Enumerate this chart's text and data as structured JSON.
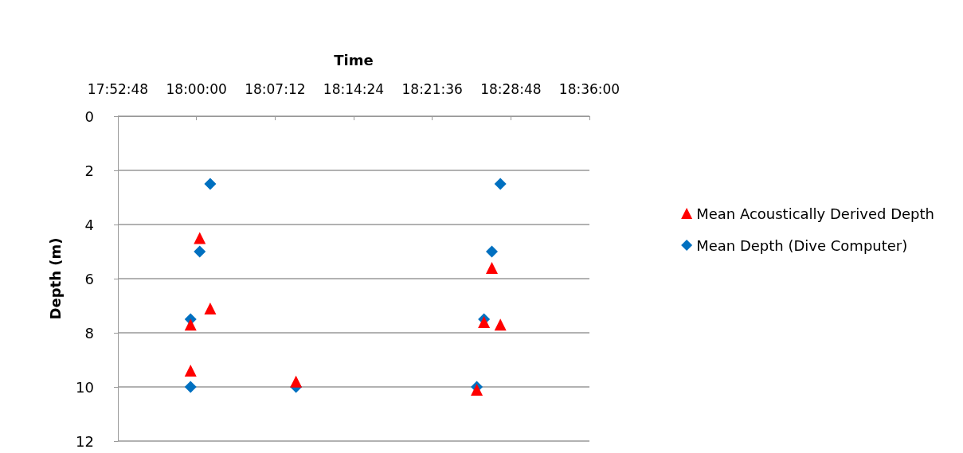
{
  "chart_data": {
    "type": "scatter",
    "xlabel": "Time",
    "ylabel": "Depth (m)",
    "xlim": [
      17.88,
      18.6
    ],
    "xticks": [
      {
        "value": 17.88,
        "label": "17:52:48"
      },
      {
        "value": 18.0,
        "label": "18:00:00"
      },
      {
        "value": 18.12,
        "label": "18:07:12"
      },
      {
        "value": 18.24,
        "label": "18:14:24"
      },
      {
        "value": 18.36,
        "label": "18:21:36"
      },
      {
        "value": 18.48,
        "label": "18:28:48"
      },
      {
        "value": 18.6,
        "label": "18:36:00"
      }
    ],
    "ylim": [
      12,
      0
    ],
    "yticks": [
      0,
      2,
      4,
      6,
      8,
      10,
      12
    ],
    "grid": "y",
    "legend": "right",
    "series": [
      {
        "name": "Mean Acoustically Derived Depth",
        "color": "#ff0000",
        "marker": "triangle",
        "x": [
          18.005,
          18.021,
          17.991,
          17.991,
          18.152,
          18.428,
          18.439,
          18.451,
          18.464
        ],
        "values": [
          4.5,
          7.1,
          7.7,
          9.4,
          9.8,
          10.1,
          7.6,
          5.6,
          7.7
        ]
      },
      {
        "name": "Mean Depth (Dive Computer)",
        "color": "#0070c0",
        "marker": "diamond",
        "x": [
          18.021,
          18.005,
          17.991,
          17.991,
          18.152,
          18.428,
          18.439,
          18.451,
          18.464
        ],
        "values": [
          2.5,
          5,
          7.5,
          10,
          10,
          10,
          7.5,
          5,
          2.5
        ]
      }
    ]
  }
}
